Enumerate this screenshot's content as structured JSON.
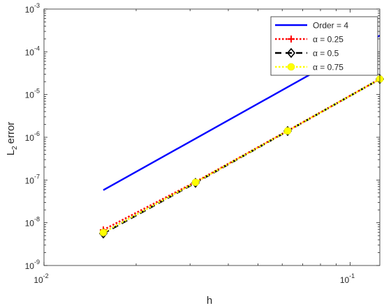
{
  "chart_data": {
    "type": "line",
    "xlabel": "h",
    "ylabel": "error",
    "xscale": "log",
    "yscale": "log",
    "xlim": [
      0.01,
      0.125
    ],
    "ylim": [
      1e-09,
      0.001
    ],
    "grid": false,
    "legend_position": "top-right",
    "x_ticks": [
      {
        "value": 0.01,
        "base": "10",
        "exp": "-2"
      },
      {
        "value": 0.1,
        "base": "10",
        "exp": "-1"
      }
    ],
    "y_ticks": [
      {
        "value": 1e-09,
        "base": "10",
        "exp": "-9"
      },
      {
        "value": 1e-08,
        "base": "10",
        "exp": "-8"
      },
      {
        "value": 1e-07,
        "base": "10",
        "exp": "-7"
      },
      {
        "value": 1e-06,
        "base": "10",
        "exp": "-6"
      },
      {
        "value": 1e-05,
        "base": "10",
        "exp": "-5"
      },
      {
        "value": 0.0001,
        "base": "10",
        "exp": "-4"
      },
      {
        "value": 0.001,
        "base": "10",
        "exp": "-3"
      }
    ],
    "series": [
      {
        "name": "Order = 4",
        "color": "#0000ff",
        "style": "solid",
        "marker": "none",
        "x": [
          0.015625,
          0.125
        ],
        "y": [
          5.8e-08,
          0.00024
        ]
      },
      {
        "name": "α = 0.25",
        "color": "#ff0000",
        "style": "dotted",
        "marker": "plus",
        "x": [
          0.015625,
          0.03125,
          0.0625,
          0.125
        ],
        "y": [
          6.8e-09,
          9e-08,
          1.42e-06,
          2.3e-05
        ]
      },
      {
        "name": "α = 0.5",
        "color": "#000000",
        "style": "dashed",
        "marker": "diamond",
        "x": [
          0.015625,
          0.03125,
          0.0625,
          0.125
        ],
        "y": [
          5.6e-09,
          8.6e-08,
          1.4e-06,
          2.3e-05
        ]
      },
      {
        "name": "α = 0.75",
        "color": "#ffff00",
        "style": "dotted",
        "marker": "circle",
        "x": [
          0.015625,
          0.03125,
          0.0625,
          0.125
        ],
        "y": [
          5.9e-09,
          8.8e-08,
          1.41e-06,
          2.3e-05
        ]
      }
    ]
  }
}
